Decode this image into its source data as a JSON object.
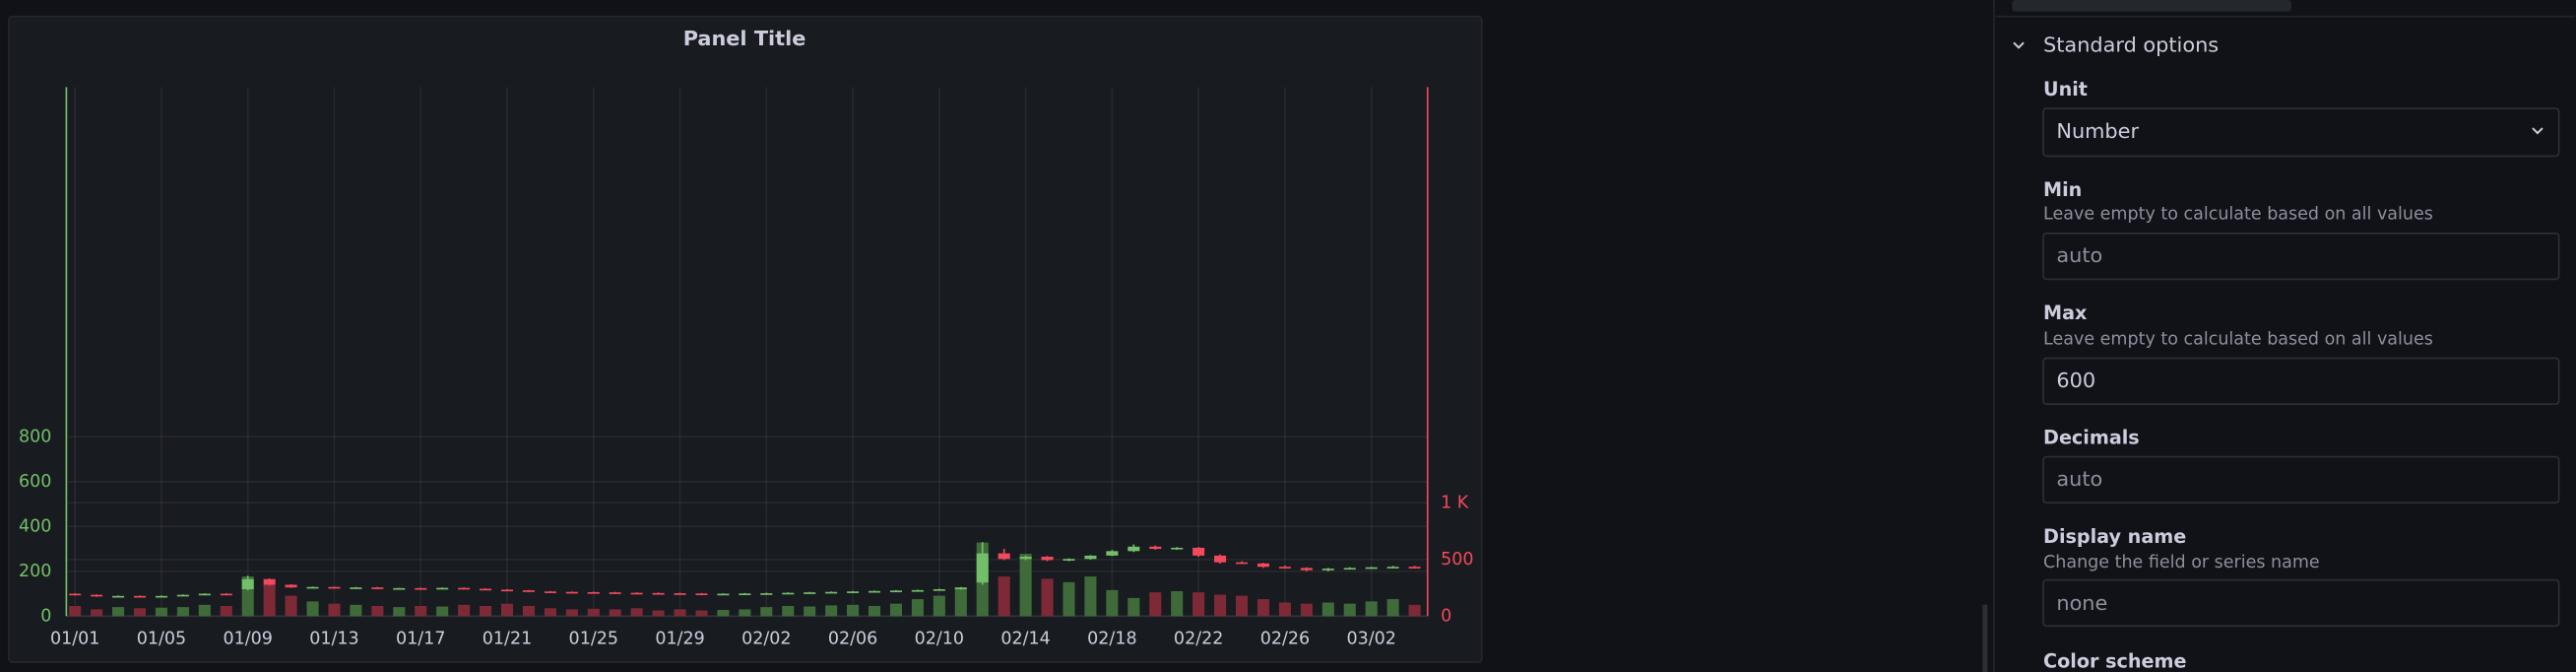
{
  "chart_data": {
    "type": "candlestick",
    "title": "Panel Title",
    "categories": [
      "01/01",
      null,
      null,
      null,
      "01/05",
      null,
      null,
      null,
      "01/09",
      null,
      null,
      null,
      "01/13",
      null,
      null,
      null,
      "01/17",
      null,
      null,
      null,
      "01/21",
      null,
      null,
      null,
      "01/25",
      null,
      null,
      null,
      "01/29",
      null,
      null,
      null,
      "02/02",
      null,
      null,
      null,
      "02/06",
      null,
      null,
      null,
      "02/10",
      null,
      null,
      null,
      "02/14",
      null,
      null,
      null,
      "02/18",
      null,
      null,
      null,
      "02/22",
      null,
      null,
      null,
      "02/26",
      null,
      null,
      null,
      "03/02",
      null,
      null
    ],
    "open": [
      100,
      95,
      88,
      90,
      86,
      90,
      95,
      100,
      120,
      165,
      140,
      128,
      130,
      126,
      128,
      122,
      125,
      124,
      126,
      122,
      118,
      115,
      110,
      108,
      107,
      106,
      104,
      103,
      102,
      101,
      100,
      100,
      101,
      102,
      104,
      106,
      108,
      110,
      112,
      114,
      116,
      120,
      150,
      280,
      255,
      265,
      250,
      255,
      270,
      290,
      310,
      300,
      305,
      270,
      240,
      235,
      220,
      215,
      205,
      212,
      215,
      218,
      220
    ],
    "high": [
      102,
      97,
      92,
      92,
      92,
      97,
      102,
      102,
      180,
      168,
      142,
      132,
      132,
      130,
      130,
      126,
      127,
      128,
      128,
      124,
      120,
      117,
      112,
      110,
      109,
      108,
      106,
      105,
      104,
      103,
      102,
      103,
      104,
      106,
      108,
      110,
      112,
      114,
      116,
      118,
      122,
      130,
      330,
      300,
      270,
      268,
      258,
      272,
      295,
      320,
      315,
      308,
      308,
      275,
      245,
      238,
      225,
      218,
      215,
      218,
      220,
      224,
      224
    ],
    "low": [
      93,
      86,
      86,
      84,
      84,
      88,
      93,
      96,
      115,
      138,
      126,
      126,
      124,
      124,
      120,
      120,
      122,
      122,
      120,
      116,
      113,
      108,
      106,
      105,
      104,
      102,
      101,
      100,
      99,
      98,
      98,
      99,
      100,
      102,
      104,
      106,
      108,
      110,
      112,
      113,
      114,
      118,
      140,
      250,
      250,
      245,
      245,
      252,
      268,
      286,
      296,
      296,
      265,
      235,
      232,
      215,
      212,
      200,
      200,
      208,
      210,
      214,
      212
    ],
    "close": [
      95,
      88,
      90,
      86,
      90,
      95,
      100,
      98,
      165,
      140,
      128,
      130,
      126,
      128,
      122,
      125,
      124,
      126,
      122,
      118,
      115,
      110,
      108,
      107,
      106,
      104,
      103,
      102,
      101,
      100,
      100,
      101,
      102,
      104,
      106,
      108,
      110,
      112,
      114,
      116,
      120,
      128,
      280,
      255,
      265,
      250,
      255,
      270,
      290,
      310,
      300,
      305,
      270,
      240,
      235,
      220,
      215,
      205,
      212,
      215,
      218,
      220,
      215
    ],
    "volume": [
      90,
      60,
      80,
      70,
      75,
      80,
      100,
      90,
      350,
      280,
      180,
      130,
      110,
      100,
      90,
      80,
      90,
      85,
      100,
      90,
      110,
      90,
      70,
      60,
      65,
      60,
      70,
      50,
      60,
      50,
      55,
      60,
      80,
      90,
      85,
      95,
      100,
      90,
      110,
      150,
      180,
      250,
      650,
      350,
      550,
      330,
      300,
      350,
      230,
      160,
      210,
      220,
      210,
      190,
      180,
      150,
      120,
      110,
      120,
      110,
      130,
      150,
      100
    ],
    "ylim": [
      0,
      2360
    ],
    "yticks": [
      0,
      200,
      400,
      600,
      800
    ],
    "y2lim": [
      0,
      4670
    ],
    "y2ticks": [
      0,
      500,
      {
        "value": 1000,
        "label": "1 K"
      }
    ],
    "grid": true,
    "up_color": "#73bf69",
    "down_color": "#f2495c",
    "volume_up_color": "#3f6b3a",
    "volume_down_color": "#7d2a36"
  },
  "options_panel": {
    "section": "Standard options",
    "unit": {
      "label": "Unit",
      "value": "Number"
    },
    "min": {
      "label": "Min",
      "description": "Leave empty to calculate based on all values",
      "placeholder": "auto"
    },
    "max": {
      "label": "Max",
      "description": "Leave empty to calculate based on all values",
      "value": "600"
    },
    "decimals": {
      "label": "Decimals",
      "placeholder": "auto"
    },
    "display_name": {
      "label": "Display name",
      "description": "Change the field or series name",
      "placeholder": "none"
    },
    "color_scheme": {
      "label": "Color scheme"
    }
  }
}
